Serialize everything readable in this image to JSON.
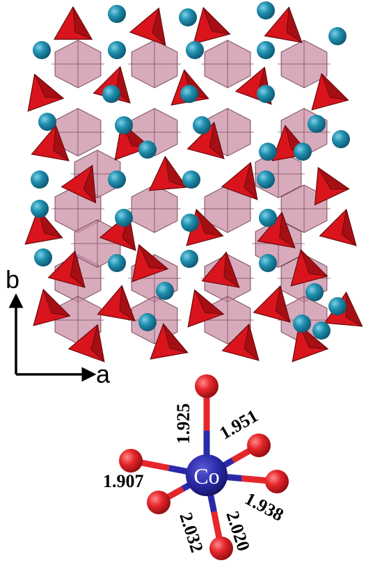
{
  "axes": {
    "b_label": "b",
    "a_label": "a"
  },
  "center_atom": {
    "label": "Co"
  },
  "bond_lengths": [
    "1.925",
    "1.951",
    "1.907",
    "1.938",
    "2.032",
    "2.020"
  ],
  "colors": {
    "tetrahedron": "#d9141c",
    "octahedron": "#c98fa6",
    "cation_sphere": "#1f8fae",
    "cobalt": "#2a2aa8",
    "oxygen": "#e5262b"
  }
}
